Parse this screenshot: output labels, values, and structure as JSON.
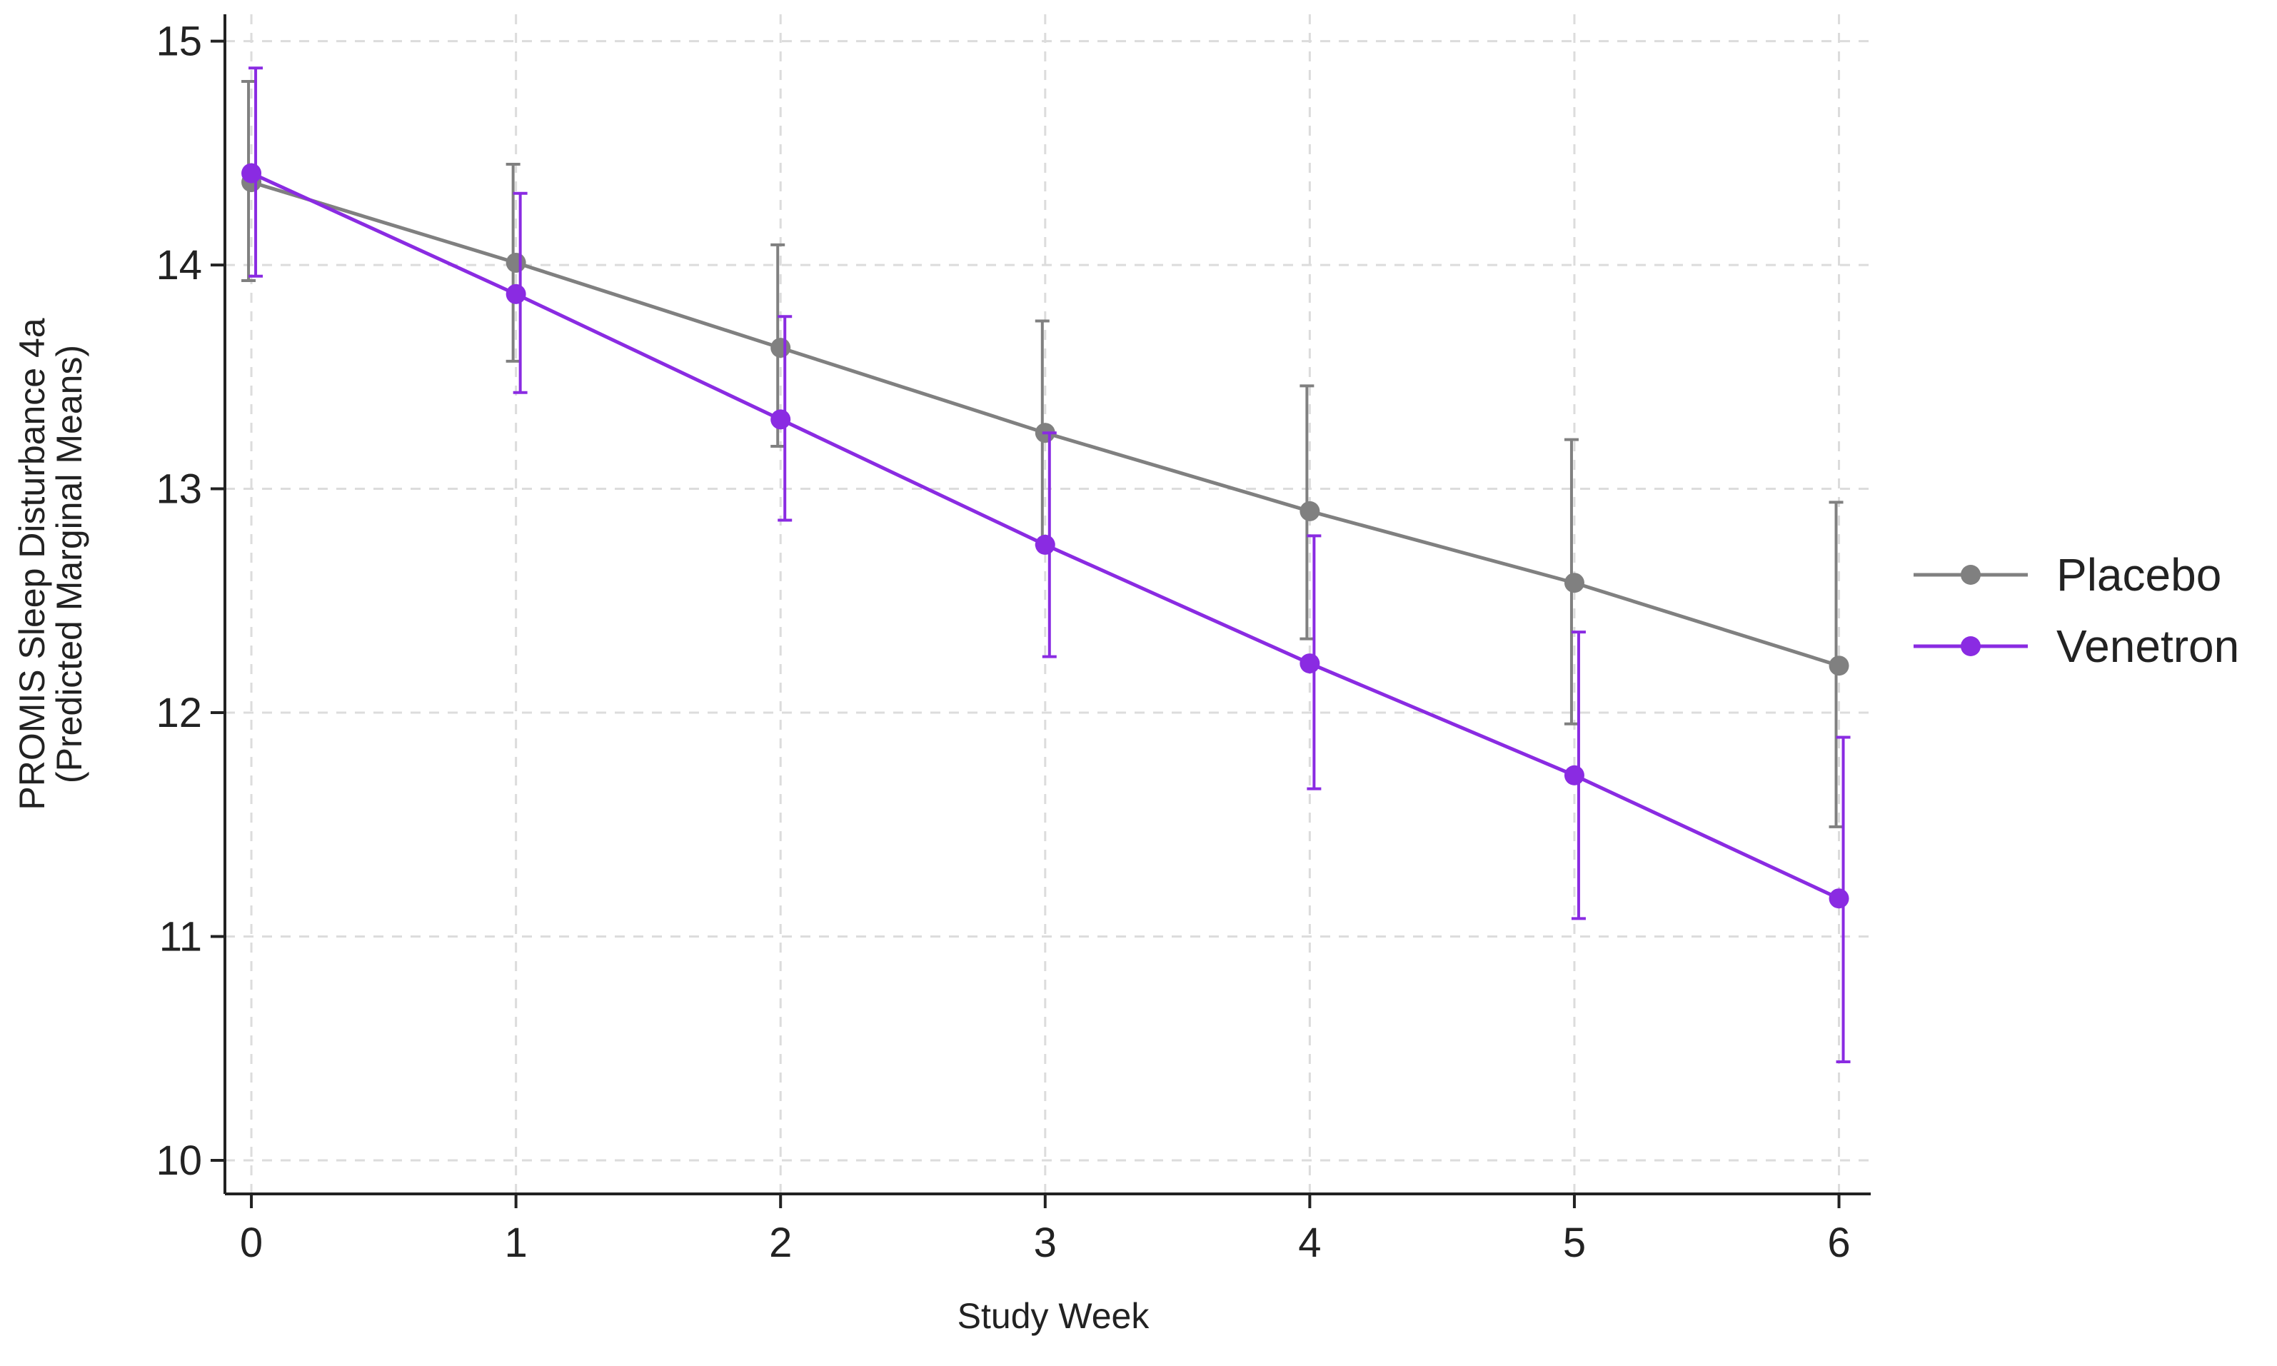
{
  "chart_data": {
    "type": "line",
    "title": "",
    "xlabel": "Study Week",
    "ylabel": "PROMIS Sleep Disturbance 4a",
    "ylabel_sub": "(Predicted Marginal Means)",
    "x": [
      0,
      1,
      2,
      3,
      4,
      5,
      6
    ],
    "x_tick_labels": [
      "0",
      "1",
      "2",
      "3",
      "4",
      "5",
      "6"
    ],
    "y_ticks": [
      10,
      11,
      12,
      13,
      14,
      15
    ],
    "y_tick_labels": [
      "10",
      "11",
      "12",
      "13",
      "14",
      "15"
    ],
    "xlim": [
      -0.1,
      6.12
    ],
    "ylim": [
      9.85,
      15.12
    ],
    "grid": true,
    "legend_position": "right",
    "series": [
      {
        "name": "Placebo",
        "color": "#808080",
        "values": [
          14.37,
          14.01,
          13.63,
          13.25,
          12.9,
          12.58,
          12.21
        ],
        "ci_low": [
          13.93,
          13.57,
          13.19,
          12.75,
          12.33,
          11.95,
          11.49
        ],
        "ci_high": [
          14.82,
          14.45,
          14.09,
          13.75,
          13.46,
          13.22,
          12.94
        ]
      },
      {
        "name": "Venetron",
        "color": "#8a2be2",
        "values": [
          14.41,
          13.87,
          13.31,
          12.75,
          12.22,
          11.72,
          11.17
        ],
        "ci_low": [
          13.95,
          13.43,
          12.86,
          12.25,
          11.66,
          11.08,
          10.44
        ],
        "ci_high": [
          14.88,
          14.32,
          13.77,
          13.25,
          12.79,
          12.36,
          11.89
        ]
      }
    ]
  }
}
